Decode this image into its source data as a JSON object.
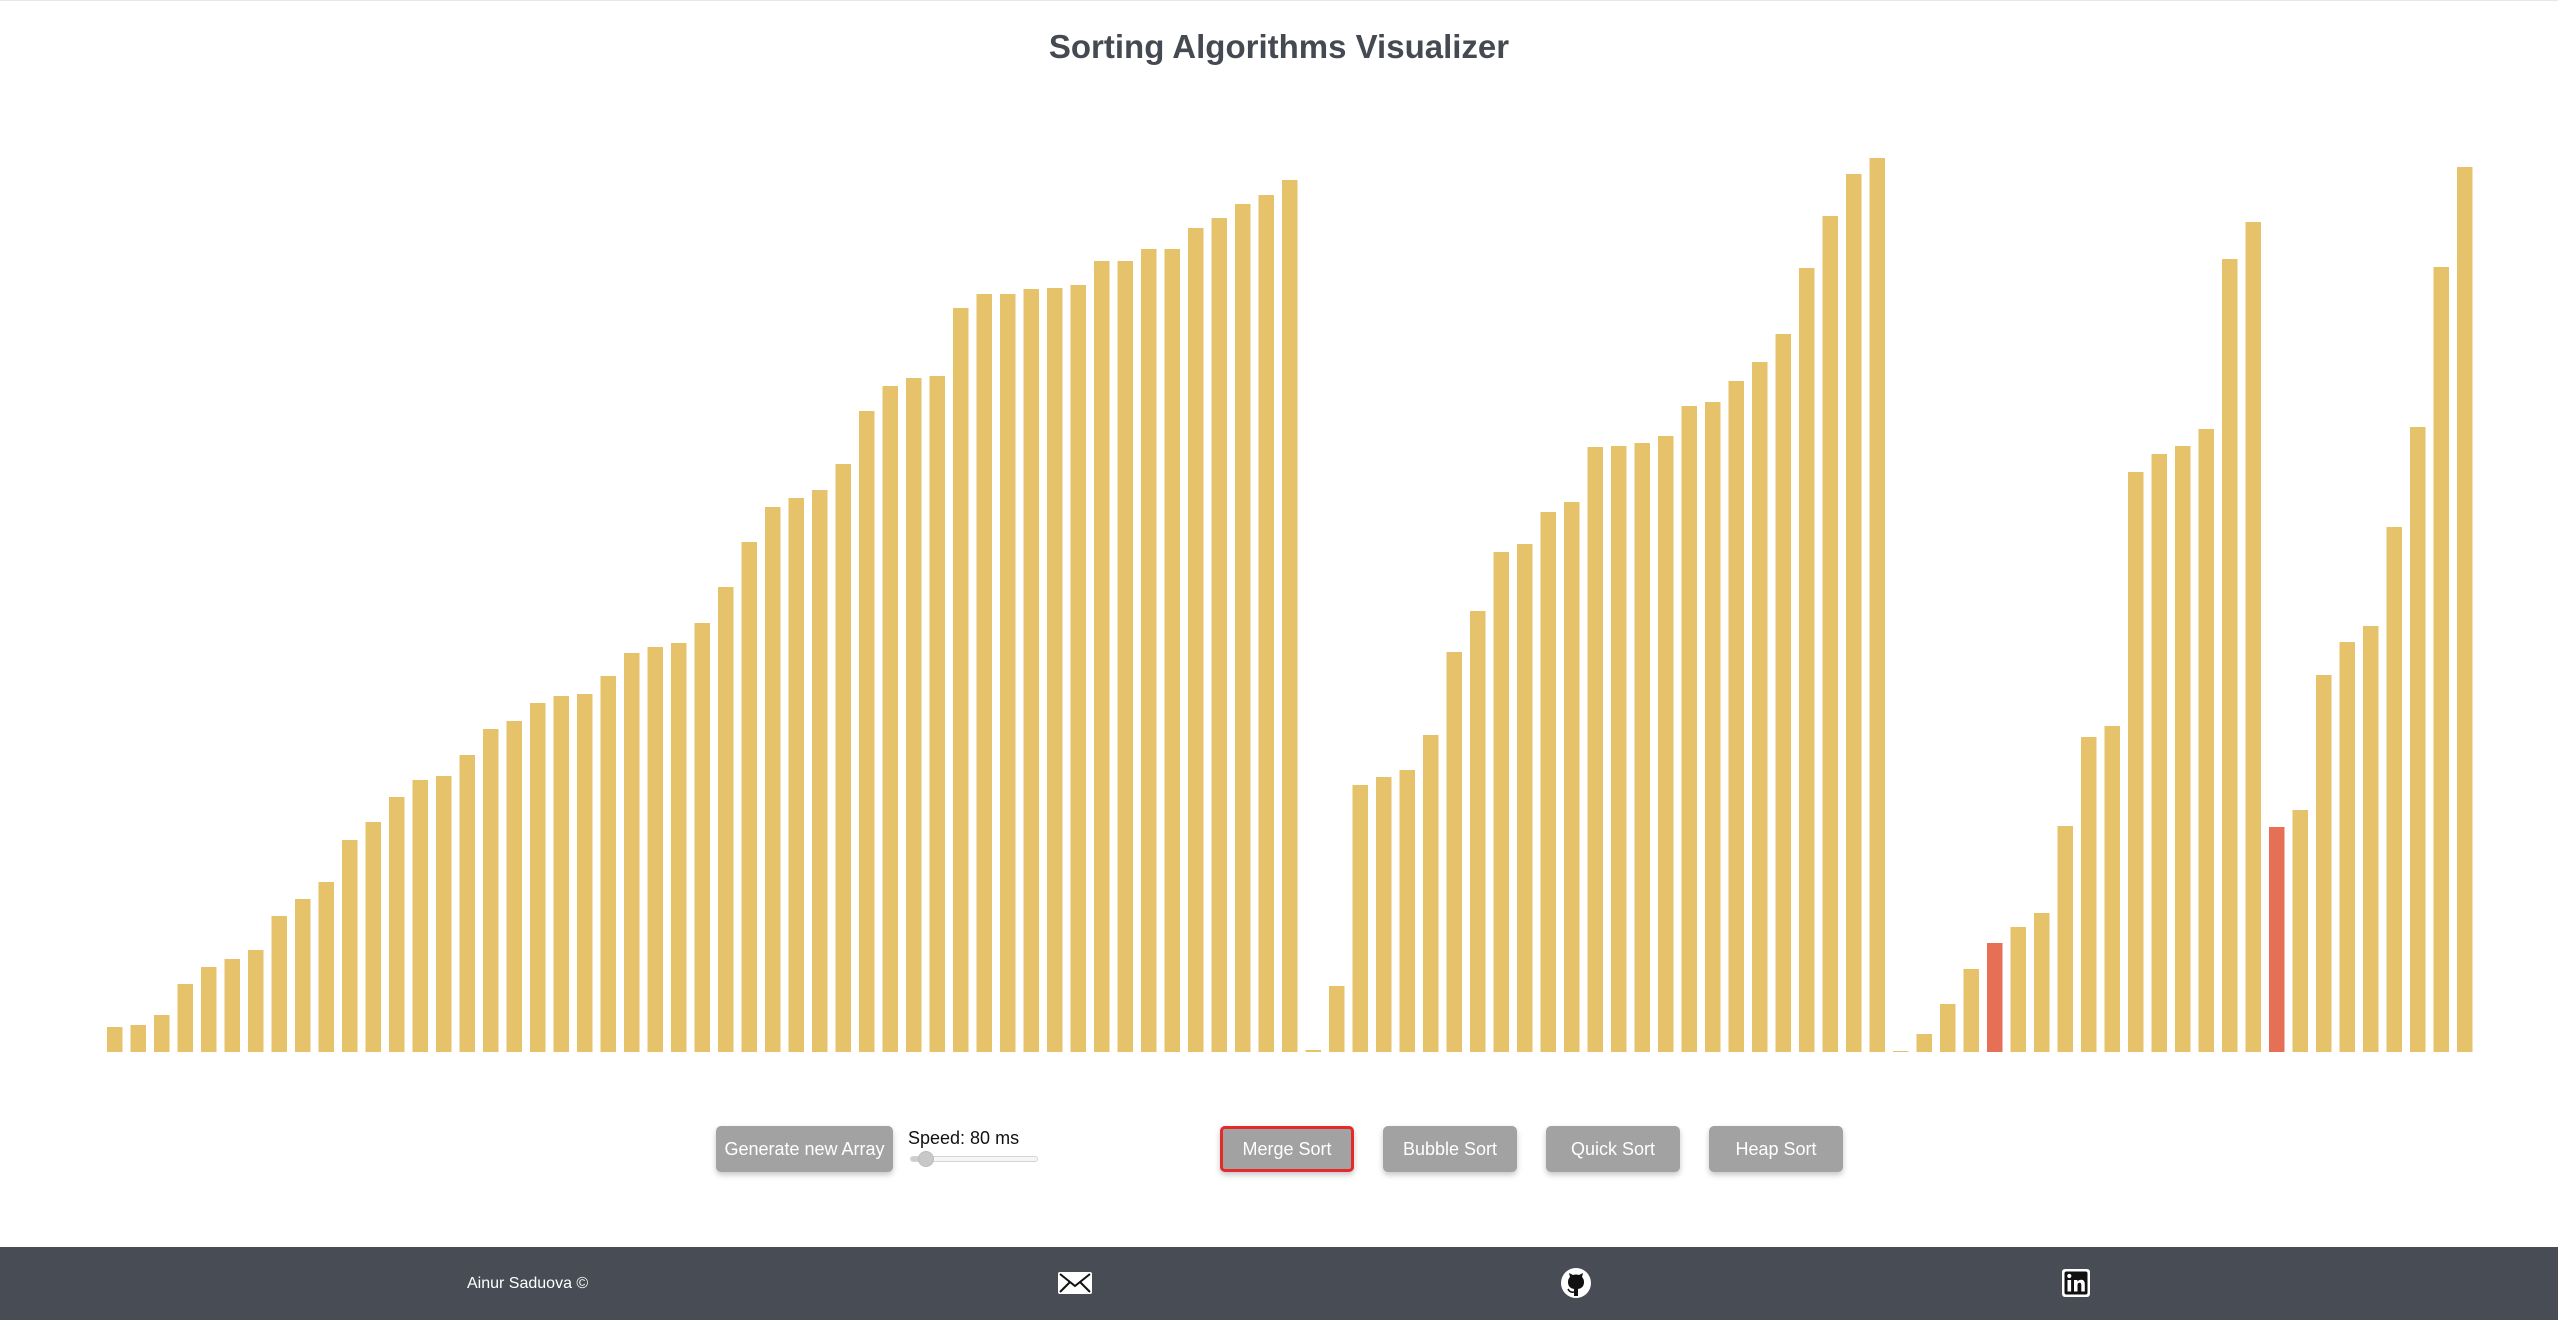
{
  "title": "Sorting Algorithms Visualizer",
  "colors": {
    "bar": "#e6c36b",
    "bar_compare": "#e57056",
    "button_bg": "#a2a2a2",
    "active_outline": "#e62a2a",
    "footer_bg": "#484d55"
  },
  "array": {
    "values": [
      25,
      27,
      37,
      68,
      85,
      93,
      102,
      136,
      153,
      170,
      212,
      230,
      255,
      272,
      276,
      297,
      323,
      331,
      349,
      356,
      358,
      376,
      399,
      405,
      409,
      429,
      465,
      510,
      545,
      554,
      562,
      588,
      641,
      666,
      674,
      676,
      744,
      758,
      758,
      763,
      764,
      767,
      791,
      791,
      803,
      803,
      824,
      834,
      848,
      857,
      872,
      2,
      66,
      267,
      275,
      282,
      317,
      400,
      441,
      500,
      508,
      540,
      550,
      605,
      606,
      609,
      616,
      646,
      650,
      671,
      690,
      718,
      784,
      836,
      878,
      894,
      1,
      18,
      48,
      83,
      109,
      125,
      139,
      226,
      315,
      326,
      580,
      598,
      606,
      623,
      793,
      830,
      225,
      242,
      377,
      410,
      426,
      525,
      625,
      785,
      885
    ],
    "compare_indices": [
      80,
      92
    ]
  },
  "controls": {
    "generate_label": "Generate new Array",
    "speed_label": "Speed: 80 ms",
    "speed_value": 80,
    "speed_fraction": 0.12,
    "active_algorithm": "Merge Sort",
    "algorithms": [
      "Merge Sort",
      "Bubble Sort",
      "Quick Sort",
      "Heap Sort"
    ]
  },
  "footer": {
    "author": "Ainur Saduova ©",
    "icons": [
      "mail-icon",
      "github-icon",
      "linkedin-icon"
    ]
  }
}
